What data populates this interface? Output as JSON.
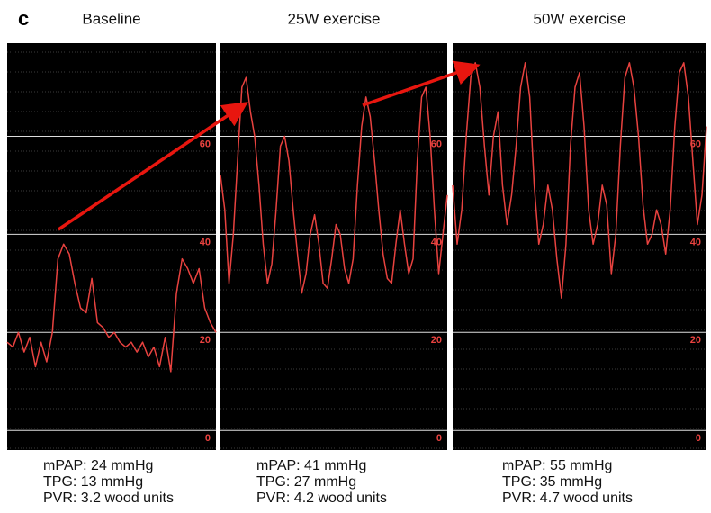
{
  "panel_label": "c",
  "chart_data": [
    {
      "type": "line",
      "title": "Baseline",
      "color": "#e8423f",
      "values": [
        18,
        17,
        20,
        16,
        19,
        13,
        18,
        14,
        20,
        35,
        38,
        36,
        30,
        25,
        24,
        31,
        22,
        21,
        19,
        20,
        18,
        17,
        18,
        16,
        18,
        15,
        17,
        13,
        19,
        12,
        28,
        35,
        33,
        30,
        33,
        25,
        22,
        20
      ],
      "ylim": [
        -4,
        79
      ],
      "yticks": [
        0,
        20,
        40,
        60
      ],
      "stats": [
        "mPAP: 24 mmHg",
        "TPG: 13 mmHg",
        "PVR: 3.2 wood units"
      ]
    },
    {
      "type": "line",
      "title": "25W exercise",
      "color": "#e8423f",
      "values": [
        52,
        45,
        30,
        40,
        55,
        70,
        72,
        65,
        60,
        50,
        38,
        30,
        34,
        45,
        58,
        60,
        55,
        45,
        36,
        28,
        32,
        40,
        44,
        38,
        30,
        29,
        35,
        42,
        40,
        33,
        30,
        35,
        50,
        62,
        68,
        64,
        55,
        45,
        36,
        31,
        30,
        38,
        45,
        38,
        32,
        35,
        55,
        68,
        70,
        60,
        45,
        32,
        40,
        48
      ],
      "ylim": [
        -4,
        79
      ],
      "yticks": [
        0,
        20,
        40,
        60
      ],
      "stats": [
        "mPAP: 41 mmHg",
        "TPG: 27 mmHg",
        "PVR: 4.2 wood units"
      ]
    },
    {
      "type": "line",
      "title": "50W exercise",
      "color": "#e8423f",
      "values": [
        50,
        38,
        45,
        60,
        72,
        75,
        70,
        58,
        48,
        60,
        65,
        50,
        42,
        48,
        58,
        70,
        75,
        68,
        50,
        38,
        42,
        50,
        45,
        35,
        27,
        38,
        58,
        70,
        73,
        62,
        45,
        38,
        42,
        50,
        46,
        32,
        40,
        58,
        72,
        75,
        70,
        60,
        46,
        38,
        40,
        45,
        42,
        36,
        45,
        62,
        73,
        75,
        68,
        55,
        42,
        48,
        62
      ],
      "ylim": [
        -4,
        79
      ],
      "yticks": [
        0,
        20,
        40,
        60
      ],
      "stats": [
        "mPAP: 55 mmHg",
        "TPG: 35 mmHg",
        "PVR: 4.7 wood units"
      ]
    }
  ]
}
